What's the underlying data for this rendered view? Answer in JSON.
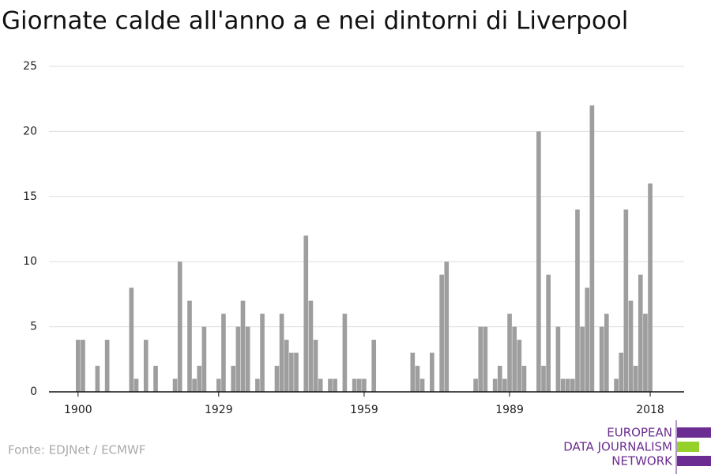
{
  "chart_data": {
    "type": "bar",
    "title": "Giornate calde all'anno a e nei dintorni di Liverpool",
    "source": "Fonte: EDJNet / ECMWF",
    "logo": [
      "EUROPEAN",
      "DATA JOURNALISM",
      "NETWORK"
    ],
    "color": "#9e9e9e",
    "x": [
      1900,
      1901,
      1904,
      1906,
      1911,
      1912,
      1914,
      1916,
      1920,
      1921,
      1923,
      1924,
      1925,
      1926,
      1929,
      1930,
      1932,
      1933,
      1934,
      1935,
      1937,
      1938,
      1941,
      1942,
      1943,
      1944,
      1945,
      1947,
      1948,
      1949,
      1950,
      1952,
      1953,
      1955,
      1957,
      1958,
      1959,
      1961,
      1969,
      1970,
      1971,
      1973,
      1975,
      1976,
      1982,
      1983,
      1984,
      1986,
      1987,
      1988,
      1989,
      1990,
      1991,
      1992,
      1995,
      1996,
      1997,
      1999,
      2000,
      2001,
      2002,
      2003,
      2004,
      2005,
      2006,
      2008,
      2009,
      2011,
      2012,
      2013,
      2014,
      2015,
      2016,
      2017,
      2018
    ],
    "values": [
      4,
      4,
      2,
      4,
      8,
      1,
      4,
      2,
      1,
      10,
      7,
      1,
      2,
      5,
      1,
      6,
      2,
      5,
      7,
      5,
      1,
      6,
      2,
      6,
      4,
      3,
      3,
      12,
      7,
      4,
      1,
      1,
      1,
      6,
      1,
      1,
      1,
      4,
      3,
      2,
      1,
      3,
      9,
      10,
      1,
      5,
      5,
      1,
      2,
      1,
      6,
      5,
      4,
      2,
      20,
      2,
      9,
      5,
      1,
      1,
      1,
      14,
      5,
      8,
      22,
      5,
      6,
      1,
      3,
      14,
      7,
      2,
      9,
      6,
      16
    ],
    "xlim": [
      1894,
      2025
    ],
    "xticks": [
      1900,
      1929,
      1959,
      1989,
      2018
    ],
    "ylim": [
      0,
      25
    ],
    "yticks": [
      0,
      5,
      10,
      15,
      20,
      25
    ],
    "grid": true
  }
}
